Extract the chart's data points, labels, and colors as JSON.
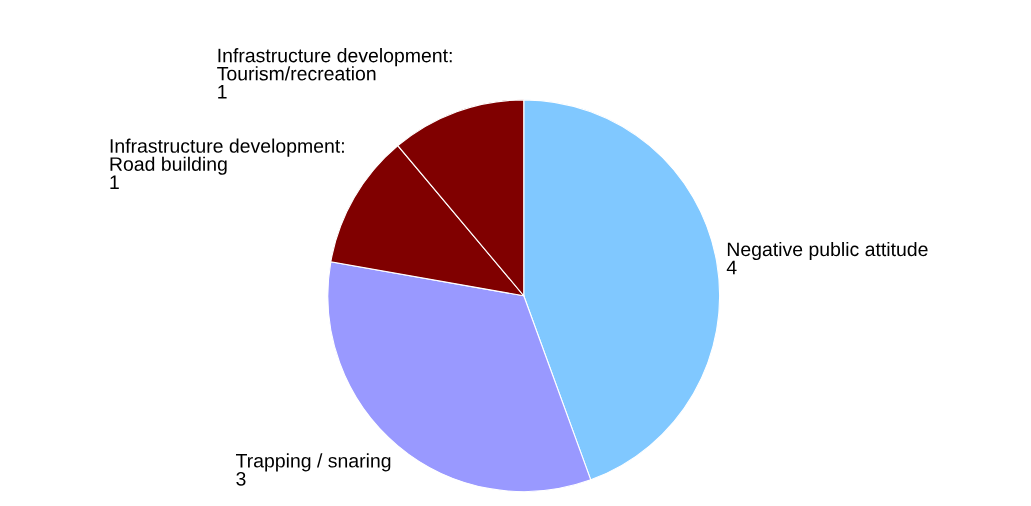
{
  "chart_data": {
    "type": "pie",
    "categories": [
      "Negative public attitude",
      "Trapping / snaring",
      "Infrastructure development:\nRoad building",
      "Infrastructure development:\nTourism/recreation"
    ],
    "values": [
      4,
      3,
      1,
      1
    ],
    "colors": [
      "#80c8ff",
      "#9999ff",
      "#800000",
      "#800000"
    ],
    "data_labels": true
  }
}
